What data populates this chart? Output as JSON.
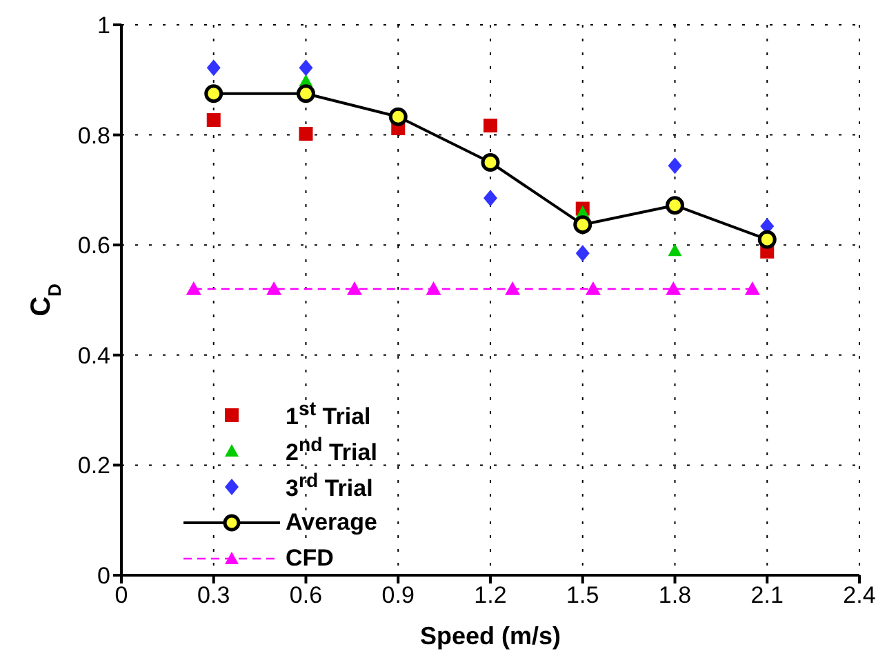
{
  "chart_data": {
    "type": "scatter",
    "xlabel": "Speed (m/s)",
    "ylabel": "C$_{D}$",
    "xlim": [
      0,
      2.4
    ],
    "xticks": [
      0,
      0.3,
      0.6,
      0.9,
      1.2,
      1.5,
      1.8,
      2.1,
      2.4
    ],
    "ylim": [
      0,
      1
    ],
    "yticks": [
      0,
      0.2,
      0.4,
      0.6,
      0.8,
      1
    ],
    "grid": true,
    "legend": "bottom left",
    "x": [
      0.3,
      0.6,
      0.9,
      1.2,
      1.5,
      1.8,
      2.1
    ],
    "series": [
      {
        "name": "1$^{st}$ Trial",
        "color": "#d40000",
        "marker": "square",
        "values": [
          0.827,
          0.802,
          0.812,
          0.817,
          0.666,
          null,
          0.588
        ]
      },
      {
        "name": "2$^{nd}$ Trial",
        "color": "#00cc00",
        "marker": "triangle",
        "values": [
          null,
          0.898,
          null,
          null,
          0.659,
          0.59,
          null
        ]
      },
      {
        "name": "3$^{rd}$ Trial",
        "color": "#3333ff",
        "marker": "diamond",
        "values": [
          0.922,
          0.922,
          null,
          0.685,
          0.585,
          0.744,
          0.634
        ]
      },
      {
        "name": "Average",
        "type": "line",
        "color": "#000000",
        "marker": "circle",
        "line_style": "solid",
        "values": [
          0.875,
          0.875,
          0.833,
          0.75,
          0.637,
          0.672,
          0.61
        ]
      },
      {
        "name": "CFD",
        "type": "line",
        "color": "#ff00ff",
        "marker": "triangle",
        "line_style": "dashed",
        "x": [
          0.235,
          0.496,
          0.758,
          1.015,
          1.272,
          1.534,
          1.795,
          2.052
        ],
        "values": [
          0.52,
          0.52,
          0.52,
          0.52,
          0.52,
          0.52,
          0.52,
          0.52
        ]
      }
    ]
  }
}
